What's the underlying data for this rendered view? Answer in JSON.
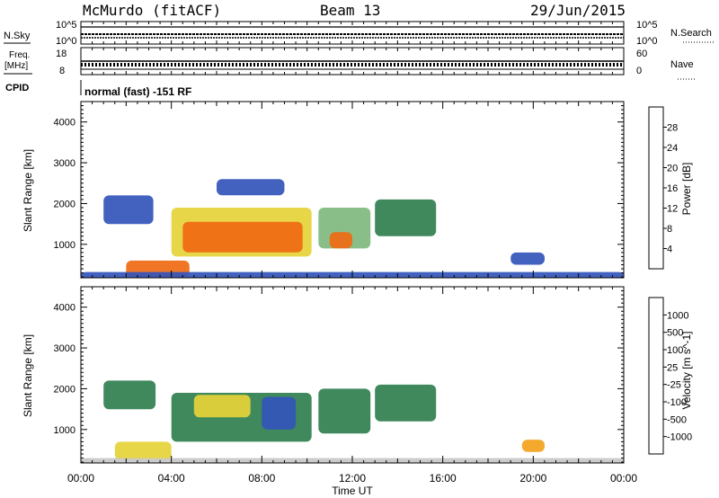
{
  "header": {
    "station": "McMurdo (fitACF)",
    "beam": "Beam 13",
    "date": "29/Jun/2015"
  },
  "summary_panels": {
    "nsky_label": "N.Sky",
    "nsearch_label": "N.Search",
    "nsky_ticks": [
      "10^5",
      "10^0"
    ],
    "nsearch_ticks": [
      "10^5",
      "10^0"
    ],
    "freq_label_1": "Freq.",
    "freq_label_2": "[MHz]",
    "freq_ticks": [
      "18",
      "8"
    ],
    "nave_label": "Nave",
    "nave_ticks": [
      "60",
      "0"
    ],
    "cpid_label": "CPID",
    "cpid_text": "normal (fast) -151 RF"
  },
  "colors": {
    "power_scale": [
      "#1f1fff",
      "#3355bb",
      "#2f7f4f",
      "#7fb87f",
      "#e6d23a",
      "#f3a21c",
      "#ef6a12",
      "#e42a10"
    ],
    "velocity_scale": [
      "#e42a10",
      "#ef6a12",
      "#f3a21c",
      "#e6d23a",
      "#c8c8c8",
      "#7ad64a",
      "#2f7f4f",
      "#3355bb",
      "#1f1fff"
    ]
  },
  "chart_data": [
    {
      "type": "heatmap",
      "id": "power",
      "ylabel": "Slant Range [km]",
      "xlabel": "",
      "xlim_hours": [
        0,
        24
      ],
      "ylim": [
        180,
        4500
      ],
      "y_ticks": [
        "1000",
        "2000",
        "3000",
        "4000"
      ],
      "y_tick_values": [
        1000,
        2000,
        3000,
        4000
      ],
      "colorbar_label": "Power [dB]",
      "colorbar_ticks": [
        "4",
        "8",
        "12",
        "16",
        "20",
        "24",
        "28"
      ],
      "colorbar_range": [
        0,
        32
      ],
      "regions": [
        {
          "t0": 1.0,
          "t1": 3.2,
          "r0": 1500,
          "r1": 2200,
          "value": 6
        },
        {
          "t0": 2.0,
          "t1": 4.8,
          "r0": 200,
          "r1": 600,
          "value": 25
        },
        {
          "t0": 4.0,
          "t1": 10.2,
          "r0": 700,
          "r1": 1900,
          "value": 18
        },
        {
          "t0": 4.5,
          "t1": 9.8,
          "r0": 800,
          "r1": 1550,
          "value": 27
        },
        {
          "t0": 6.0,
          "t1": 9.0,
          "r0": 2200,
          "r1": 2600,
          "value": 5
        },
        {
          "t0": 10.5,
          "t1": 12.8,
          "r0": 900,
          "r1": 1900,
          "value": 14
        },
        {
          "t0": 11.0,
          "t1": 12.0,
          "r0": 900,
          "r1": 1300,
          "value": 26
        },
        {
          "t0": 13.0,
          "t1": 15.7,
          "r0": 1200,
          "r1": 2100,
          "value": 11
        },
        {
          "t0": 19.0,
          "t1": 20.5,
          "r0": 500,
          "r1": 800,
          "value": 7
        },
        {
          "t0": 0.0,
          "t1": 24.0,
          "r0": 180,
          "r1": 320,
          "value": 5
        }
      ]
    },
    {
      "type": "heatmap",
      "id": "velocity",
      "ylabel": "Slant Range [km]",
      "xlabel": "Time UT",
      "xlim_hours": [
        0,
        24
      ],
      "x_ticks": [
        "00:00",
        "04:00",
        "08:00",
        "12:00",
        "16:00",
        "20:00",
        "00:00"
      ],
      "x_tick_hours": [
        0,
        4,
        8,
        12,
        16,
        20,
        24
      ],
      "ylim": [
        180,
        4500
      ],
      "y_ticks": [
        "1000",
        "2000",
        "3000",
        "4000"
      ],
      "y_tick_values": [
        1000,
        2000,
        3000,
        4000
      ],
      "colorbar_label": "Velocity [m s^-1]",
      "colorbar_ticks": [
        "-1000",
        "-500",
        "-100",
        "-25",
        "25",
        "100",
        "500",
        "1000"
      ],
      "regions": [
        {
          "t0": 1.0,
          "t1": 3.3,
          "r0": 1500,
          "r1": 2200,
          "value": 100
        },
        {
          "t0": 1.5,
          "t1": 4.0,
          "r0": 250,
          "r1": 700,
          "value": -100
        },
        {
          "t0": 4.0,
          "t1": 10.2,
          "r0": 700,
          "r1": 1900,
          "value": 100
        },
        {
          "t0": 5.0,
          "t1": 7.5,
          "r0": 1300,
          "r1": 1850,
          "value": -100
        },
        {
          "t0": 8.0,
          "t1": 9.5,
          "r0": 1000,
          "r1": 1800,
          "value": 500
        },
        {
          "t0": 10.5,
          "t1": 12.8,
          "r0": 900,
          "r1": 2000,
          "value": 100
        },
        {
          "t0": 13.0,
          "t1": 15.7,
          "r0": 1200,
          "r1": 2100,
          "value": 100
        },
        {
          "t0": 19.5,
          "t1": 20.5,
          "r0": 450,
          "r1": 750,
          "value": -500
        },
        {
          "t0": 0.0,
          "t1": 24.0,
          "r0": 180,
          "r1": 300,
          "value": -25
        }
      ]
    }
  ]
}
